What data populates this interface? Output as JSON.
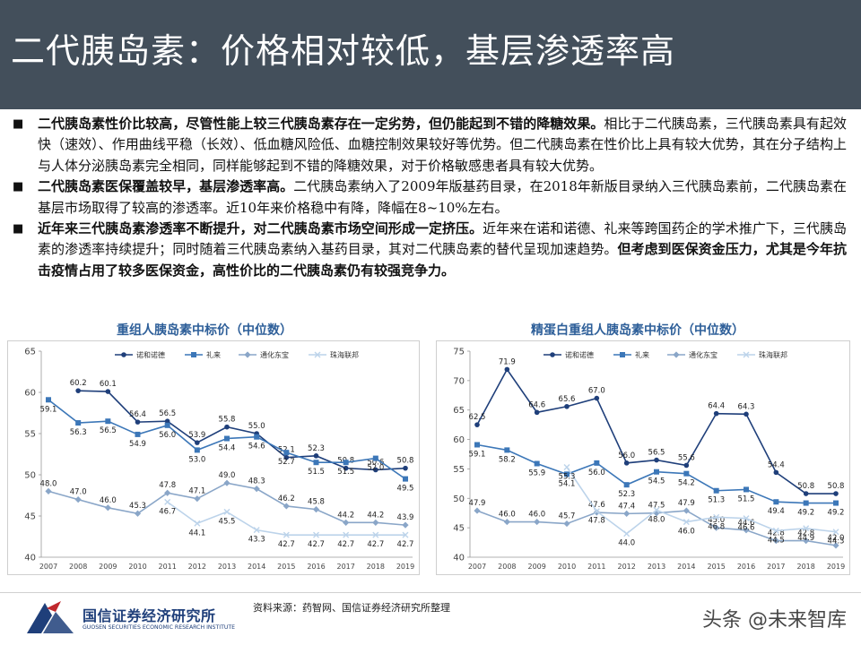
{
  "header": {
    "title": "二代胰岛素：价格相对较低，基层渗透率高"
  },
  "bullets": [
    {
      "bold": "二代胰岛素性价比较高，尽管性能上较三代胰岛素存在一定劣势，但仍能起到不错的降糖效果。",
      "text": "相比于二代胰岛素，三代胰岛素具有起效快（速效）、作用曲线平稳（长效）、低血糖风险低、血糖控制效果较好等优势。但二代胰岛素在性价比上具有较大优势，其在分子结构上与人体分泌胰岛素完全相同，同样能够起到不错的降糖效果，对于价格敏感患者具有较大优势。",
      "bold2": ""
    },
    {
      "bold": "二代胰岛素医保覆盖较早，基层渗透率高。",
      "text": "二代胰岛素纳入了2009年版基药目录，在2018年新版目录纳入三代胰岛素前，二代胰岛素在基层市场取得了较高的渗透率。近10年来价格稳中有降，降幅在8~10%左右。",
      "bold2": ""
    },
    {
      "bold": "近年来三代胰岛素渗透率不断提升，对二代胰岛素市场空间形成一定挤压。",
      "text": "近年来在诺和诺德、礼来等跨国药企的学术推广下，三代胰岛素的渗透率持续提升；同时随着三代胰岛素纳入基药目录，其对二代胰岛素的替代呈现加速趋势。",
      "bold2": "但考虑到医保资金压力，尤其是今年抗击疫情占用了较多医保资金，高性价比的二代胰岛素仍有较强竞争力。"
    }
  ],
  "chart_data": [
    {
      "type": "line",
      "title": "重组人胰岛素中标价（中位数）",
      "x": [
        "2007",
        "2008",
        "2009",
        "2010",
        "2011",
        "2012",
        "2013",
        "2014",
        "2015",
        "2016",
        "2017",
        "2018",
        "2019"
      ],
      "ylim": [
        40,
        65
      ],
      "yticks": [
        40,
        45,
        50,
        55,
        60,
        65
      ],
      "series": [
        {
          "name": "诺和诺德",
          "color": "#1f3f7a",
          "marker": "circle",
          "values": [
            null,
            60.2,
            60.1,
            56.4,
            56.5,
            53.9,
            55.8,
            55.0,
            52.1,
            52.3,
            50.8,
            50.6,
            50.8
          ]
        },
        {
          "name": "礼来",
          "color": "#3c77b8",
          "marker": "square",
          "values": [
            59.1,
            56.3,
            56.5,
            54.9,
            56.0,
            53.0,
            54.4,
            54.6,
            52.7,
            51.5,
            51.5,
            52.0,
            49.5
          ]
        },
        {
          "name": "通化东宝",
          "color": "#8aa6c8",
          "marker": "diamond",
          "values": [
            48.0,
            47.0,
            46.0,
            45.3,
            47.8,
            47.1,
            49.0,
            48.3,
            46.2,
            45.8,
            44.2,
            44.2,
            43.9
          ]
        },
        {
          "name": "珠海联邦",
          "color": "#bcd3ea",
          "marker": "x",
          "values": [
            null,
            null,
            null,
            null,
            46.7,
            44.1,
            45.5,
            43.3,
            42.7,
            42.7,
            42.7,
            42.7,
            42.7
          ]
        }
      ]
    },
    {
      "type": "line",
      "title": "精蛋白重组人胰岛素中标价（中位数）",
      "x": [
        "2007",
        "2008",
        "2009",
        "2010",
        "2011",
        "2012",
        "2013",
        "2014",
        "2015",
        "2016",
        "2017",
        "2018",
        "2019"
      ],
      "ylim": [
        40,
        75
      ],
      "yticks": [
        40,
        45,
        50,
        55,
        60,
        65,
        70,
        75
      ],
      "series": [
        {
          "name": "诺和诺德",
          "color": "#1f3f7a",
          "marker": "circle",
          "values": [
            62.5,
            71.9,
            64.6,
            65.6,
            67.0,
            56.0,
            56.5,
            55.6,
            64.4,
            64.3,
            54.4,
            50.8,
            50.8
          ]
        },
        {
          "name": "礼来",
          "color": "#3c77b8",
          "marker": "square",
          "values": [
            59.1,
            58.2,
            55.9,
            54.1,
            56.0,
            52.3,
            54.5,
            54.2,
            51.3,
            51.5,
            49.4,
            49.2,
            49.2
          ]
        },
        {
          "name": "通化东宝",
          "color": "#8aa6c8",
          "marker": "diamond",
          "values": [
            47.9,
            46.0,
            46.0,
            45.7,
            47.6,
            47.4,
            47.5,
            47.9,
            45.0,
            44.6,
            42.8,
            42.8,
            42.0
          ]
        },
        {
          "name": "珠海联邦",
          "color": "#bcd3ea",
          "marker": "x",
          "values": [
            null,
            null,
            null,
            55.3,
            47.8,
            44.0,
            48.0,
            46.0,
            46.8,
            46.6,
            44.5,
            44.9,
            44.3
          ]
        }
      ]
    }
  ],
  "footer": {
    "source": "资料来源：药智网、国信证券经济研究所整理",
    "logo_cn": "国信证券经济研究所",
    "logo_en": "GUOSEN SECURITIES ECONOMIC RESEARCH INSTITUTE",
    "watermark": "头条 @未来智库",
    "logo_color": "#1f3f7a",
    "logo_accent": "#c0282d"
  }
}
